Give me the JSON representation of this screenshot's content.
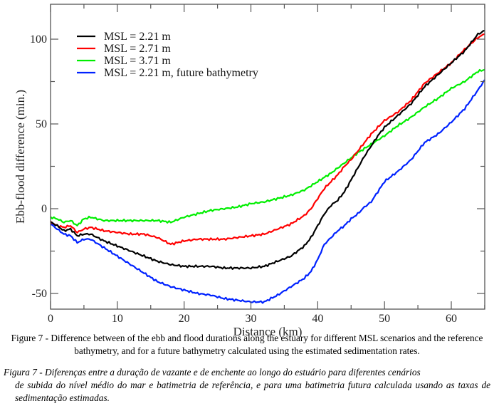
{
  "chart_data": {
    "type": "line",
    "title": "",
    "xlabel": "Distance (km)",
    "ylabel": "Ebb-flood difference (min.)",
    "xlim": [
      0,
      65
    ],
    "ylim": [
      -60,
      120
    ],
    "xticks": [
      0,
      10,
      20,
      30,
      40,
      50,
      60
    ],
    "xminor": [
      5,
      15,
      25,
      35,
      45,
      55,
      65
    ],
    "yticks": [
      -50,
      0,
      50,
      100
    ],
    "yminor": [
      -25,
      25,
      75
    ],
    "grid": false,
    "legend": "top-left",
    "series": [
      {
        "name": "MSL = 2.21 m",
        "color": "#000000",
        "x": [
          0,
          1,
          2,
          3,
          4,
          5,
          6,
          8,
          10,
          12,
          14,
          16,
          18,
          20,
          22,
          24,
          26,
          28,
          30,
          32,
          34,
          36,
          38,
          39,
          40,
          41,
          42,
          43,
          44,
          45,
          46,
          47,
          48,
          49,
          50,
          52,
          54,
          56,
          58,
          60,
          62,
          64,
          65
        ],
        "y": [
          -8,
          -10,
          -13,
          -12,
          -16,
          -15,
          -15,
          -19,
          -22,
          -25,
          -28,
          -31,
          -33,
          -34,
          -34,
          -34,
          -35,
          -35,
          -35,
          -34,
          -31,
          -28,
          -22,
          -17,
          -10,
          -3,
          2,
          5,
          10,
          17,
          24,
          31,
          37,
          43,
          48,
          55,
          62,
          72,
          79,
          86,
          93,
          103,
          105
        ]
      },
      {
        "name": "MSL = 2.71 m",
        "color": "#ff0000",
        "x": [
          0,
          1,
          2,
          3,
          4,
          5,
          6,
          8,
          10,
          12,
          14,
          16,
          18,
          20,
          22,
          24,
          26,
          28,
          30,
          32,
          34,
          36,
          38,
          39,
          40,
          41,
          42,
          43,
          44,
          45,
          46,
          47,
          48,
          49,
          50,
          52,
          54,
          56,
          58,
          60,
          62,
          64,
          65
        ],
        "y": [
          -8,
          -10,
          -11,
          -10,
          -14,
          -12,
          -11,
          -13,
          -14,
          -15,
          -15,
          -17,
          -21,
          -19,
          -18,
          -18,
          -18,
          -17,
          -16,
          -15,
          -12,
          -9,
          -4,
          0,
          6,
          12,
          16,
          20,
          25,
          29,
          34,
          39,
          44,
          48,
          52,
          57,
          64,
          74,
          80,
          86,
          94,
          101,
          103
        ]
      },
      {
        "name": "MSL = 3.71 m",
        "color": "#00ee00",
        "x": [
          0,
          1,
          2,
          3,
          4,
          5,
          6,
          8,
          10,
          12,
          14,
          16,
          18,
          20,
          22,
          24,
          26,
          28,
          30,
          32,
          34,
          36,
          38,
          40,
          42,
          44,
          46,
          48,
          50,
          52,
          54,
          56,
          58,
          60,
          62,
          64,
          65
        ],
        "y": [
          -5,
          -6,
          -8,
          -7,
          -10,
          -6,
          -5,
          -7,
          -7,
          -7,
          -7,
          -7,
          -8,
          -5,
          -3,
          -1,
          0,
          1,
          3,
          4,
          6,
          8,
          11,
          16,
          21,
          27,
          33,
          38,
          43,
          49,
          54,
          60,
          65,
          71,
          75,
          81,
          82
        ]
      },
      {
        "name": "MSL = 2.21 m, future bathymetry",
        "color": "#0022ff",
        "x": [
          0,
          1,
          2,
          3,
          4,
          5,
          6,
          8,
          10,
          12,
          14,
          16,
          18,
          20,
          22,
          24,
          26,
          28,
          30,
          32,
          33,
          34,
          36,
          38,
          39,
          40,
          41,
          42,
          43,
          44,
          45,
          46,
          47,
          48,
          49,
          50,
          52,
          54,
          56,
          58,
          60,
          62,
          64,
          65
        ],
        "y": [
          -9,
          -12,
          -15,
          -16,
          -20,
          -18,
          -18,
          -23,
          -28,
          -33,
          -38,
          -43,
          -46,
          -48,
          -50,
          -51,
          -53,
          -54,
          -55,
          -55,
          -53,
          -51,
          -46,
          -41,
          -37,
          -30,
          -21,
          -17,
          -13,
          -10,
          -6,
          -3,
          1,
          4,
          10,
          16,
          22,
          29,
          39,
          44,
          51,
          59,
          70,
          76
        ]
      }
    ]
  },
  "captions": {
    "english": "Figure 7 - Difference between of the ebb and flood durations along the estuary for different MSL scenarios and the reference bathymetry, and for a future bathymetry calculated using the estimated sedimentation rates.",
    "portuguese_line1": "Figura 7 - Diferenças entre a duração de vazante e de enchente ao longo do estuário para diferentes cenários",
    "portuguese_rest": "de subida do nível médio do mar e batimetria de referência, e para uma batimetria futura calculada usando as taxas de sedimentação estimadas."
  }
}
